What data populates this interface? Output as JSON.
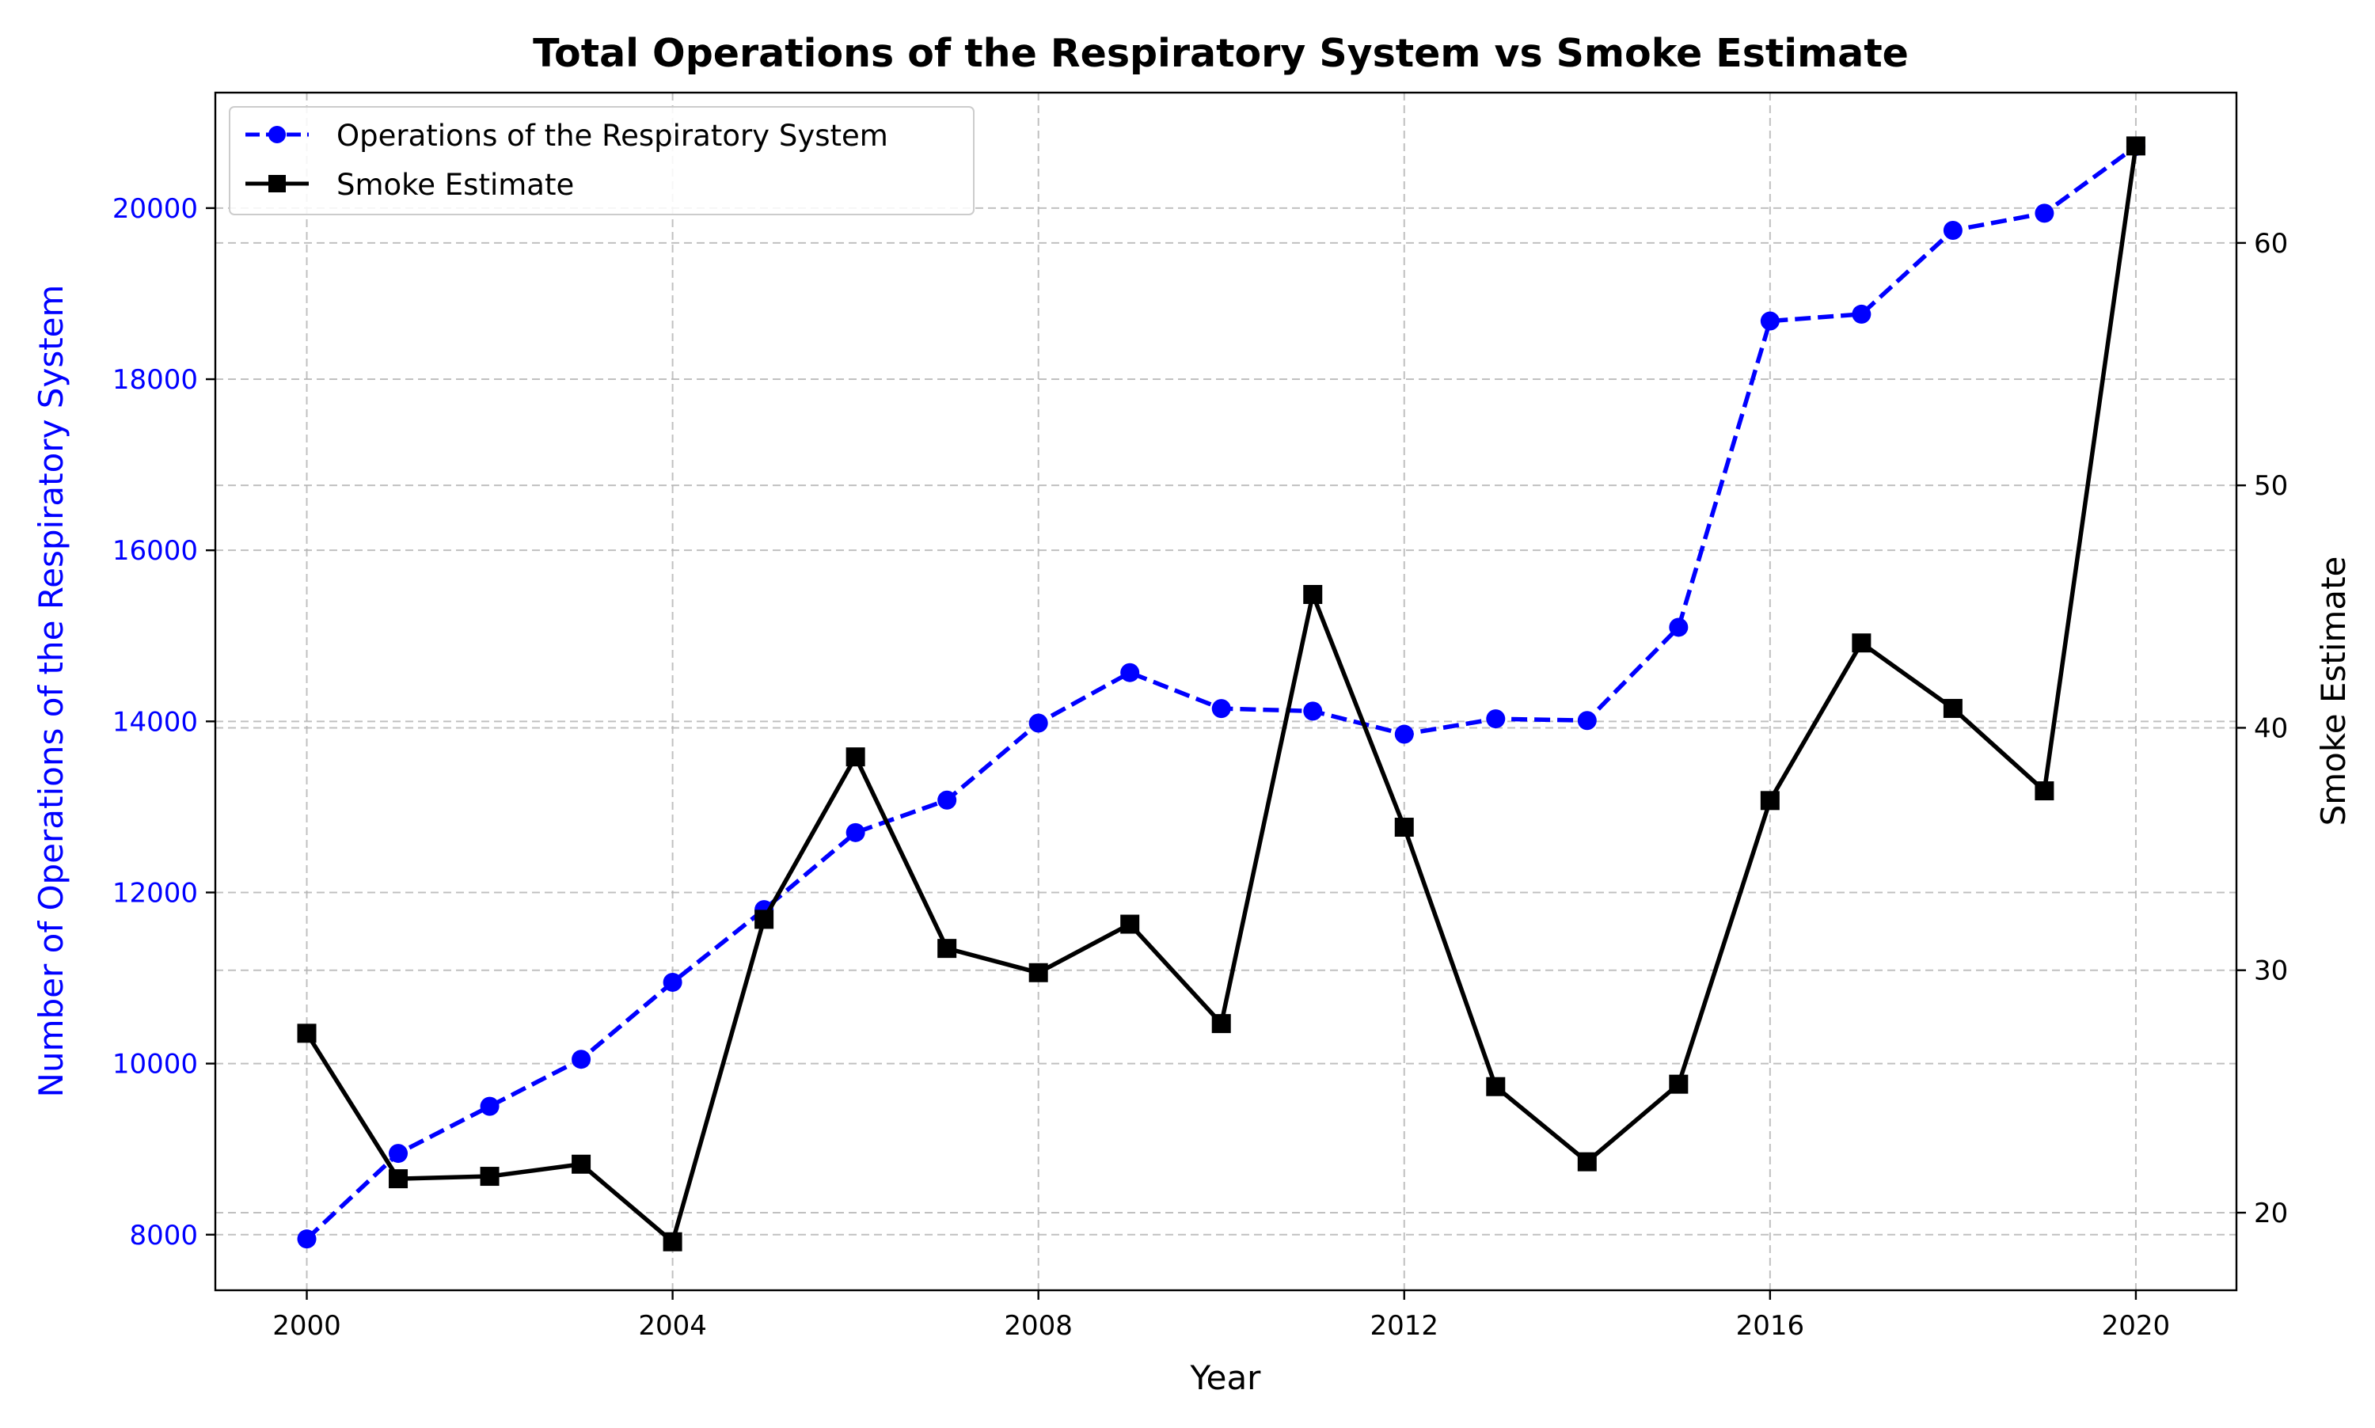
{
  "chart_data": {
    "type": "line",
    "title": "Total Operations of the Respiratory System vs Smoke Estimate",
    "xlabel": "Year",
    "ylabel_left": "Number of Operations of the Respiratory System",
    "ylabel_right": "Smoke Estimate",
    "x": [
      2000,
      2001,
      2002,
      2003,
      2004,
      2005,
      2006,
      2007,
      2008,
      2009,
      2010,
      2011,
      2012,
      2013,
      2014,
      2015,
      2016,
      2017,
      2018,
      2019,
      2020
    ],
    "xlim": [
      1999,
      2021.1
    ],
    "xticks": [
      2000,
      2004,
      2008,
      2012,
      2016,
      2020
    ],
    "ylim_left": [
      7350,
      21350
    ],
    "yticks_left": [
      8000,
      10000,
      12000,
      14000,
      16000,
      18000,
      20000
    ],
    "ylim_right": [
      16.8,
      66.2
    ],
    "yticks_right": [
      20,
      30,
      40,
      50,
      60
    ],
    "grid": true,
    "legend_position": "upper-left",
    "series": [
      {
        "name": "Operations of the Respiratory System",
        "axis": "left",
        "color": "#0000ff",
        "line_style": "dashed",
        "marker": "circle",
        "values": [
          7950,
          8950,
          9500,
          10050,
          10950,
          11800,
          12700,
          13080,
          13980,
          14570,
          14150,
          14120,
          13850,
          14030,
          14010,
          15100,
          18680,
          18760,
          19740,
          19940,
          20720
        ]
      },
      {
        "name": "Smoke Estimate",
        "axis": "right",
        "color": "#000000",
        "line_style": "solid",
        "marker": "square",
        "values": [
          27.4,
          21.4,
          21.5,
          22.0,
          18.8,
          32.1,
          38.8,
          30.9,
          29.9,
          31.9,
          27.8,
          45.5,
          35.9,
          25.2,
          22.1,
          25.3,
          37.0,
          43.5,
          40.8,
          37.4,
          64.0
        ]
      }
    ]
  }
}
